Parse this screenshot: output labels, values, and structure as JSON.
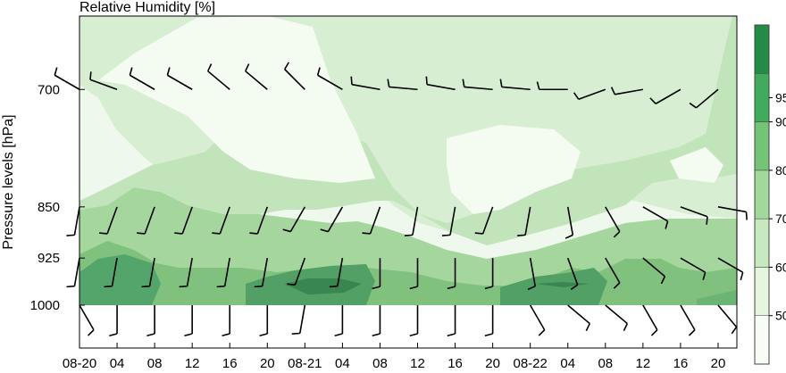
{
  "chart_data": {
    "type": "heatmap",
    "title": "Relative Humidity [%]",
    "xlabel": "",
    "ylabel": "Pressure levels [hPa]",
    "x_tick_labels": [
      "08-20",
      "04",
      "08",
      "12",
      "16",
      "20",
      "08-21",
      "04",
      "08",
      "12",
      "16",
      "20",
      "08-22",
      "04",
      "08",
      "12",
      "16",
      "20"
    ],
    "x_tick_hours": [
      0,
      4,
      8,
      12,
      16,
      20,
      24,
      28,
      32,
      36,
      40,
      44,
      48,
      52,
      56,
      60,
      64,
      68
    ],
    "x_range_hours": [
      0,
      70
    ],
    "y_scale": "log",
    "y_range_hpa": [
      620,
      1000
    ],
    "y_ticks": [
      700,
      850,
      925,
      1000
    ],
    "y_tick_labels": [
      "700",
      "850",
      "925",
      "1000"
    ],
    "colorbar": {
      "levels": [
        40,
        50,
        60,
        70,
        80,
        90,
        100
      ],
      "tick_labels": [
        "50",
        "60",
        "70",
        "80",
        "90",
        "95"
      ],
      "tick_values": [
        50,
        60,
        70,
        80,
        90,
        95
      ],
      "colors": [
        "#f7fcf5",
        "#e5f5e0",
        "#c7e9c0",
        "#a1d99b",
        "#74c476",
        "#41ab5d",
        "#238b45"
      ]
    },
    "contour_levels": [
      {
        "rh": 60,
        "color": "#d8eed2"
      },
      {
        "rh": 70,
        "color": "#bde3b6"
      },
      {
        "rh": 80,
        "color": "#93cf8d"
      },
      {
        "rh": 90,
        "color": "#61b36b"
      },
      {
        "rh": 95,
        "color": "#3f8f56"
      }
    ],
    "wind_barbs": {
      "levels_hpa": [
        700,
        850,
        925,
        1000
      ],
      "hours": [
        0,
        4,
        8,
        12,
        16,
        20,
        24,
        28,
        32,
        36,
        40,
        44,
        48,
        52,
        56,
        60,
        64,
        68
      ],
      "direction_deg": [
        [
          300,
          290,
          300,
          300,
          310,
          310,
          315,
          300,
          280,
          275,
          280,
          275,
          275,
          270,
          250,
          260,
          240,
          230
        ],
        [
          190,
          200,
          200,
          200,
          200,
          200,
          210,
          210,
          200,
          190,
          190,
          200,
          190,
          170,
          150,
          120,
          110,
          100
        ],
        [
          190,
          190,
          190,
          190,
          190,
          190,
          200,
          190,
          180,
          180,
          180,
          180,
          170,
          160,
          150,
          130,
          120,
          120
        ],
        [
          150,
          180,
          180,
          180,
          180,
          180,
          190,
          180,
          180,
          180,
          180,
          180,
          150,
          130,
          130,
          150,
          150,
          140
        ]
      ]
    }
  }
}
